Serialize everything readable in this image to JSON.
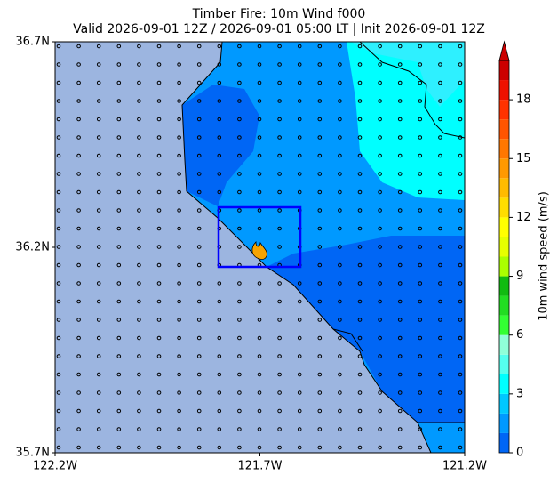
{
  "map": {
    "title": [
      "Timber Fire: 10m Wind f000",
      "Valid 2026-09-01 12Z / 2026-09-01 05:00 LT | Init 2026-09-01 12Z"
    ],
    "xlim": [
      -122.2,
      -121.2
    ],
    "ylim": [
      35.7,
      36.7
    ],
    "xticks": [
      {
        "value": -122.2,
        "label": "122.2W"
      },
      {
        "value": -121.7,
        "label": "121.7W"
      },
      {
        "value": -121.2,
        "label": "121.2W"
      }
    ],
    "yticks": [
      {
        "value": 35.7,
        "label": "35.7N"
      },
      {
        "value": 36.2,
        "label": "36.2N"
      },
      {
        "value": 36.7,
        "label": "36.7N"
      }
    ],
    "colorbar": {
      "label": "10m wind speed (m/s)",
      "lim": [
        0,
        20
      ],
      "ticks": [
        0,
        3,
        6,
        9,
        12,
        15,
        18
      ],
      "colors": [
        "#0066f5",
        "#0099ff",
        "#00c8ff",
        "#00ffff",
        "#55ffee",
        "#90ffd8",
        "#33ff33",
        "#22dd22",
        "#11bb11",
        "#aaff00",
        "#e6ff00",
        "#ffff00",
        "#ffdd00",
        "#ffbb00",
        "#ff9900",
        "#ff7700",
        "#ff5500",
        "#ff3300",
        "#ee1100",
        "#cc0000"
      ]
    }
  }
}
